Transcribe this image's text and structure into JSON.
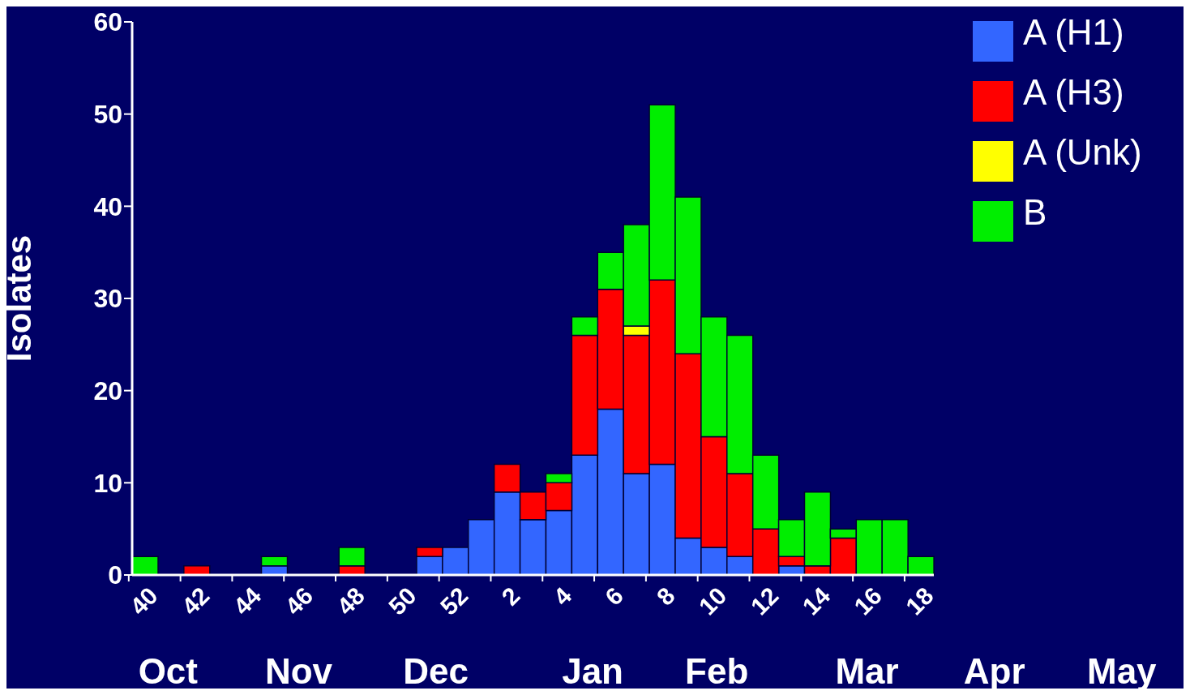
{
  "chart_data": {
    "type": "bar",
    "ylabel": "Isolates",
    "stacked": true,
    "legend": "top right",
    "categories": [
      "40",
      null,
      "42",
      null,
      "44",
      null,
      "46",
      null,
      "48",
      null,
      "50",
      null,
      "52",
      null,
      "2",
      null,
      "4",
      null,
      "6",
      null,
      "8",
      null,
      "10",
      null,
      "12",
      null,
      "14",
      null,
      "16",
      null,
      "18"
    ],
    "series": [
      {
        "name": "A (H1)",
        "color": "#3366ff",
        "values": [
          0,
          0,
          0,
          0,
          0,
          1,
          0,
          0,
          0,
          0,
          0,
          2,
          3,
          6,
          9,
          6,
          7,
          13,
          18,
          11,
          12,
          4,
          3,
          2,
          0,
          1,
          0,
          0,
          0,
          0,
          0
        ]
      },
      {
        "name": "A (H3)",
        "color": "#ff0000",
        "values": [
          0,
          0,
          1,
          0,
          0,
          0,
          0,
          0,
          1,
          0,
          0,
          1,
          0,
          0,
          3,
          3,
          3,
          13,
          13,
          15,
          20,
          20,
          12,
          9,
          5,
          1,
          1,
          4,
          0,
          0,
          0
        ]
      },
      {
        "name": "A (Unk)",
        "color": "#ffff00",
        "values": [
          0,
          0,
          0,
          0,
          0,
          0,
          0,
          0,
          0,
          0,
          0,
          0,
          0,
          0,
          0,
          0,
          0,
          0,
          0,
          1,
          0,
          0,
          0,
          0,
          0,
          0,
          0,
          0,
          0,
          0,
          0
        ]
      },
      {
        "name": "B",
        "color": "#00ee00",
        "values": [
          2,
          0,
          0,
          0,
          0,
          1,
          0,
          0,
          2,
          0,
          0,
          0,
          0,
          0,
          0,
          0,
          1,
          2,
          4,
          11,
          19,
          17,
          13,
          15,
          8,
          4,
          8,
          1,
          6,
          6,
          2
        ]
      }
    ],
    "ylim": [
      0,
      60
    ],
    "yticks": [
      0,
      10,
      20,
      30,
      40,
      50,
      60
    ],
    "annotations": [
      "Oct",
      "Nov",
      "Dec",
      "Jan",
      "Feb",
      "Mar",
      "Apr",
      "May"
    ]
  }
}
